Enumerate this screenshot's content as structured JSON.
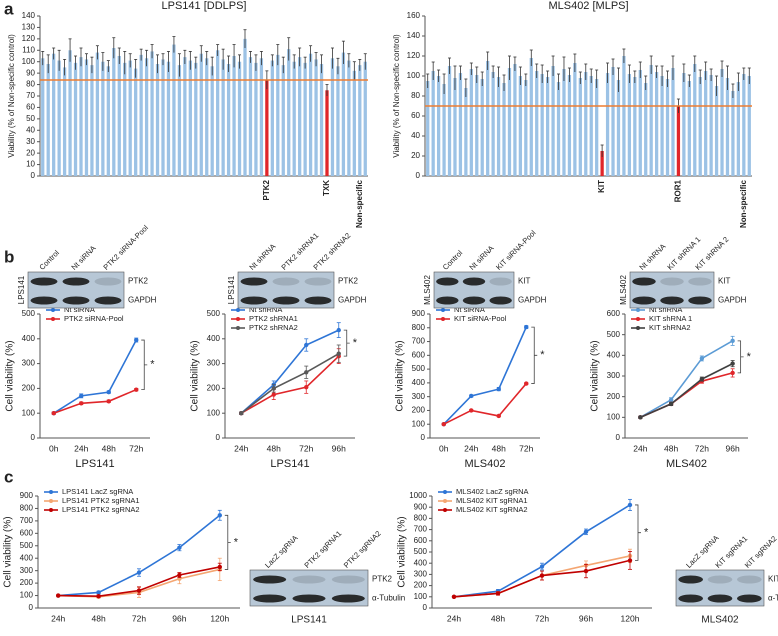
{
  "panel_labels": [
    "a",
    "b",
    "c"
  ],
  "chart_data": [
    {
      "type": "bar",
      "title": "LPS141 [DDLPS]",
      "ylabel": "Viability (% of Non-specific control)",
      "categories": [
        null,
        null,
        null,
        null,
        null,
        null,
        null,
        null,
        null,
        null,
        null,
        null,
        null,
        null,
        null,
        null,
        null,
        null,
        null,
        null,
        null,
        null,
        null,
        null,
        null,
        null,
        null,
        null,
        null,
        null,
        null,
        null,
        null,
        null,
        null,
        null,
        null,
        null,
        null,
        null,
        null,
        "PTK2",
        null,
        null,
        null,
        null,
        null,
        null,
        null,
        null,
        null,
        null,
        "TXK",
        null,
        null,
        null,
        null,
        null,
        "Non-specific",
        null
      ],
      "values": [
        103,
        98,
        107,
        101,
        95,
        110,
        99,
        104,
        102,
        97,
        108,
        100,
        96,
        112,
        105,
        99,
        101,
        94,
        106,
        103,
        109,
        98,
        102,
        100,
        115,
        97,
        104,
        101,
        99,
        107,
        103,
        96,
        110,
        102,
        98,
        105,
        100,
        120,
        104,
        99,
        103,
        84,
        101,
        106,
        97,
        111,
        100,
        104,
        99,
        107,
        102,
        98,
        75,
        103,
        96,
        108,
        101,
        92,
        97,
        100
      ],
      "errors": [
        6,
        8,
        5,
        9,
        7,
        10,
        6,
        8,
        5,
        7,
        6,
        8,
        5,
        9,
        7,
        10,
        6,
        8,
        5,
        7,
        6,
        8,
        5,
        9,
        7,
        10,
        6,
        8,
        5,
        7,
        6,
        8,
        5,
        9,
        7,
        10,
        6,
        8,
        5,
        7,
        6,
        8,
        5,
        9,
        7,
        10,
        6,
        8,
        5,
        7,
        6,
        8,
        5,
        9,
        7,
        10,
        6,
        8,
        5,
        7
      ],
      "color": "#9cc2e5",
      "highlight": [
        41,
        52
      ],
      "highlight_color": "#e0262a",
      "reference_line": 84,
      "reference_color": "#ed7d31",
      "ylim": [
        0,
        140
      ],
      "yticks": [
        0,
        10,
        20,
        30,
        40,
        50,
        60,
        70,
        80,
        90,
        100,
        110,
        120,
        130,
        140
      ]
    },
    {
      "type": "bar",
      "title": "MLS402 [MLPS]",
      "ylabel": "Viability (% of Non-specific control)",
      "categories": [
        null,
        null,
        null,
        null,
        null,
        null,
        null,
        null,
        null,
        null,
        null,
        null,
        null,
        null,
        null,
        null,
        null,
        null,
        null,
        null,
        null,
        null,
        null,
        null,
        null,
        null,
        null,
        null,
        null,
        null,
        null,
        null,
        "KIT",
        null,
        null,
        null,
        null,
        null,
        null,
        null,
        null,
        null,
        null,
        null,
        null,
        null,
        "ROR1",
        null,
        null,
        null,
        null,
        null,
        null,
        null,
        null,
        null,
        null,
        null,
        "Non-specific",
        null
      ],
      "values": [
        95,
        105,
        100,
        92,
        110,
        98,
        103,
        88,
        107,
        101,
        97,
        115,
        104,
        99,
        93,
        108,
        112,
        100,
        96,
        118,
        105,
        102,
        99,
        110,
        94,
        107,
        101,
        113,
        98,
        104,
        100,
        97,
        25,
        103,
        109,
        96,
        120,
        102,
        99,
        106,
        93,
        111,
        104,
        100,
        97,
        108,
        70,
        103,
        95,
        112,
        99,
        105,
        101,
        90,
        107,
        98,
        85,
        94,
        102,
        100
      ],
      "errors": [
        7,
        9,
        6,
        10,
        8,
        12,
        7,
        9,
        6,
        8,
        7,
        9,
        6,
        10,
        8,
        12,
        7,
        9,
        6,
        8,
        7,
        9,
        6,
        10,
        8,
        12,
        7,
        9,
        6,
        8,
        7,
        9,
        6,
        10,
        8,
        12,
        7,
        9,
        6,
        8,
        7,
        9,
        6,
        10,
        8,
        12,
        7,
        9,
        6,
        8,
        7,
        9,
        6,
        10,
        8,
        12,
        7,
        9,
        6,
        8
      ],
      "color": "#9cc2e5",
      "highlight": [
        32,
        46
      ],
      "highlight_color": "#e0262a",
      "reference_line": 70,
      "reference_color": "#ed7d31",
      "ylim": [
        0,
        160
      ],
      "yticks": [
        0,
        20,
        40,
        60,
        80,
        100,
        120,
        140,
        160
      ]
    },
    {
      "type": "line",
      "ylabel": "Cell viability (%)",
      "xlabel": "LPS141",
      "annotation": "*",
      "legend": "upper left",
      "categories": [
        "0h",
        "24h",
        "48h",
        "72h"
      ],
      "series": [
        {
          "name": "Nt siRNA",
          "color": "#2e75d6",
          "values": [
            100,
            170,
            185,
            395
          ],
          "errors": [
            4,
            8,
            5,
            8
          ]
        },
        {
          "name": "PTK2 siRNA-Pool",
          "color": "#e0262a",
          "values": [
            100,
            140,
            148,
            195
          ],
          "errors": [
            4,
            5,
            5,
            5
          ]
        }
      ],
      "ylim": [
        0,
        500
      ],
      "yticks": [
        0,
        100,
        200,
        300,
        400,
        500
      ],
      "blot": {
        "lanes": [
          "Control",
          "Nt siRNA",
          "PTK2 siRNA-Pool"
        ],
        "bands": [
          "PTK2",
          "GAPDH"
        ],
        "cell_line": "LPS141"
      }
    },
    {
      "type": "line",
      "ylabel": "Cell viability (%)",
      "xlabel": "LPS141",
      "annotation": "*",
      "legend": "upper left",
      "categories": [
        "24h",
        "48h",
        "72h",
        "96h"
      ],
      "series": [
        {
          "name": "Nt shRNA",
          "color": "#2e75d6",
          "values": [
            100,
            215,
            375,
            435
          ],
          "errors": [
            5,
            15,
            25,
            30
          ]
        },
        {
          "name": "PTK2 shRNA1",
          "color": "#e0262a",
          "values": [
            100,
            175,
            205,
            330
          ],
          "errors": [
            5,
            20,
            25,
            30
          ]
        },
        {
          "name": "PTK2 shRNA2",
          "color": "#595959",
          "values": [
            100,
            200,
            265,
            340
          ],
          "errors": [
            5,
            15,
            25,
            35
          ]
        }
      ],
      "ylim": [
        0,
        500
      ],
      "yticks": [
        0,
        100,
        200,
        300,
        400,
        500
      ],
      "blot": {
        "lanes": [
          "Nt shRNA",
          "PTK2 shRNA1",
          "PTK2 shRNA2"
        ],
        "bands": [
          "PTK2",
          "GAPDH"
        ],
        "cell_line": "LPS141"
      }
    },
    {
      "type": "line",
      "ylabel": "Cell viability (%)",
      "xlabel": "MLS402",
      "annotation": "*",
      "legend": "upper left",
      "categories": [
        "0h",
        "24h",
        "48h",
        "72h"
      ],
      "series": [
        {
          "name": "Nt siRNA",
          "color": "#2e75d6",
          "values": [
            100,
            305,
            355,
            805
          ],
          "errors": [
            4,
            8,
            12,
            10
          ]
        },
        {
          "name": "KIT siRNA-Pool",
          "color": "#e0262a",
          "values": [
            100,
            200,
            160,
            395
          ],
          "errors": [
            4,
            6,
            6,
            6
          ]
        }
      ],
      "ylim": [
        0,
        900
      ],
      "yticks": [
        0,
        100,
        200,
        300,
        400,
        500,
        600,
        700,
        800,
        900
      ],
      "blot": {
        "lanes": [
          "Control",
          "Nt siRNA",
          "KIT siRNA-Pool"
        ],
        "bands": [
          "KIT",
          "GAPDH"
        ],
        "cell_line": "MLS402"
      }
    },
    {
      "type": "line",
      "ylabel": "Cell viability (%)",
      "xlabel": "MLS402",
      "annotation": "*",
      "legend": "upper left",
      "categories": [
        "24h",
        "48h",
        "72h",
        "96h"
      ],
      "series": [
        {
          "name": "Nt shRNA",
          "color": "#5b9bd5",
          "values": [
            100,
            185,
            385,
            470
          ],
          "errors": [
            5,
            10,
            12,
            22
          ]
        },
        {
          "name": "KIT shRNA 1",
          "color": "#e0262a",
          "values": [
            100,
            165,
            275,
            315
          ],
          "errors": [
            5,
            8,
            10,
            20
          ]
        },
        {
          "name": "KIT shRNA2",
          "color": "#404040",
          "values": [
            100,
            165,
            285,
            360
          ],
          "errors": [
            5,
            8,
            10,
            15
          ]
        }
      ],
      "ylim": [
        0,
        600
      ],
      "yticks": [
        0,
        100,
        200,
        300,
        400,
        500,
        600
      ],
      "blot": {
        "lanes": [
          "Nt shRNA",
          "KIT shRNA 1",
          "KIT shRNA 2"
        ],
        "bands": [
          "KIT",
          "GAPDH"
        ],
        "cell_line": "MLS402"
      }
    },
    {
      "type": "line",
      "ylabel": "Cell viability (%)",
      "annotation": "*",
      "legend": "upper left",
      "categories": [
        "24h",
        "48h",
        "72h",
        "96h",
        "120h"
      ],
      "series": [
        {
          "name": "LPS141 LacZ sgRNA",
          "color": "#2e75d6",
          "values": [
            100,
            125,
            285,
            485,
            745
          ],
          "errors": [
            5,
            10,
            30,
            25,
            40
          ]
        },
        {
          "name": "LPS141 PTK2 sgRNA1",
          "color": "#f4a672",
          "values": [
            100,
            90,
            125,
            235,
            310
          ],
          "errors": [
            5,
            10,
            40,
            40,
            90
          ]
        },
        {
          "name": "LPS141 PTK2 sgRNA2",
          "color": "#c00000",
          "values": [
            100,
            95,
            140,
            265,
            330
          ],
          "errors": [
            5,
            10,
            30,
            20,
            30
          ]
        }
      ],
      "ylim": [
        0,
        900
      ],
      "yticks": [
        0,
        100,
        200,
        300,
        400,
        500,
        600,
        700,
        800,
        900
      ],
      "blot": {
        "lanes": [
          "LacZ sgRNA",
          "PTK2 sgRNA1",
          "PTK2 sgRNA2"
        ],
        "bands": [
          "PTK2",
          "α-Tubulin"
        ],
        "cell_line": "LPS141"
      }
    },
    {
      "type": "line",
      "ylabel": "Cell viability (%)",
      "annotation": "*",
      "legend": "upper left",
      "categories": [
        "24h",
        "48h",
        "72h",
        "96h",
        "120h"
      ],
      "series": [
        {
          "name": "MLS402 LacZ sgRNA",
          "color": "#2e75d6",
          "values": [
            100,
            150,
            370,
            680,
            920
          ],
          "errors": [
            5,
            15,
            30,
            25,
            50
          ]
        },
        {
          "name": "MLS402 KIT sgRNA1",
          "color": "#f4a672",
          "values": [
            100,
            130,
            290,
            380,
            465
          ],
          "errors": [
            5,
            15,
            40,
            40,
            60
          ]
        },
        {
          "name": "MLS402 KIT sgRNA2",
          "color": "#c00000",
          "values": [
            100,
            130,
            290,
            330,
            425
          ],
          "errors": [
            5,
            15,
            40,
            60,
            80
          ]
        }
      ],
      "ylim": [
        0,
        1000
      ],
      "yticks": [
        0,
        100,
        200,
        300,
        400,
        500,
        600,
        700,
        800,
        900,
        1000
      ],
      "blot": {
        "lanes": [
          "LacZ sgRNA",
          "KIT sgRNA1",
          "KIT sgRNA2"
        ],
        "bands": [
          "KIT",
          "α-Tubulin"
        ],
        "cell_line": "MLS402"
      }
    }
  ]
}
